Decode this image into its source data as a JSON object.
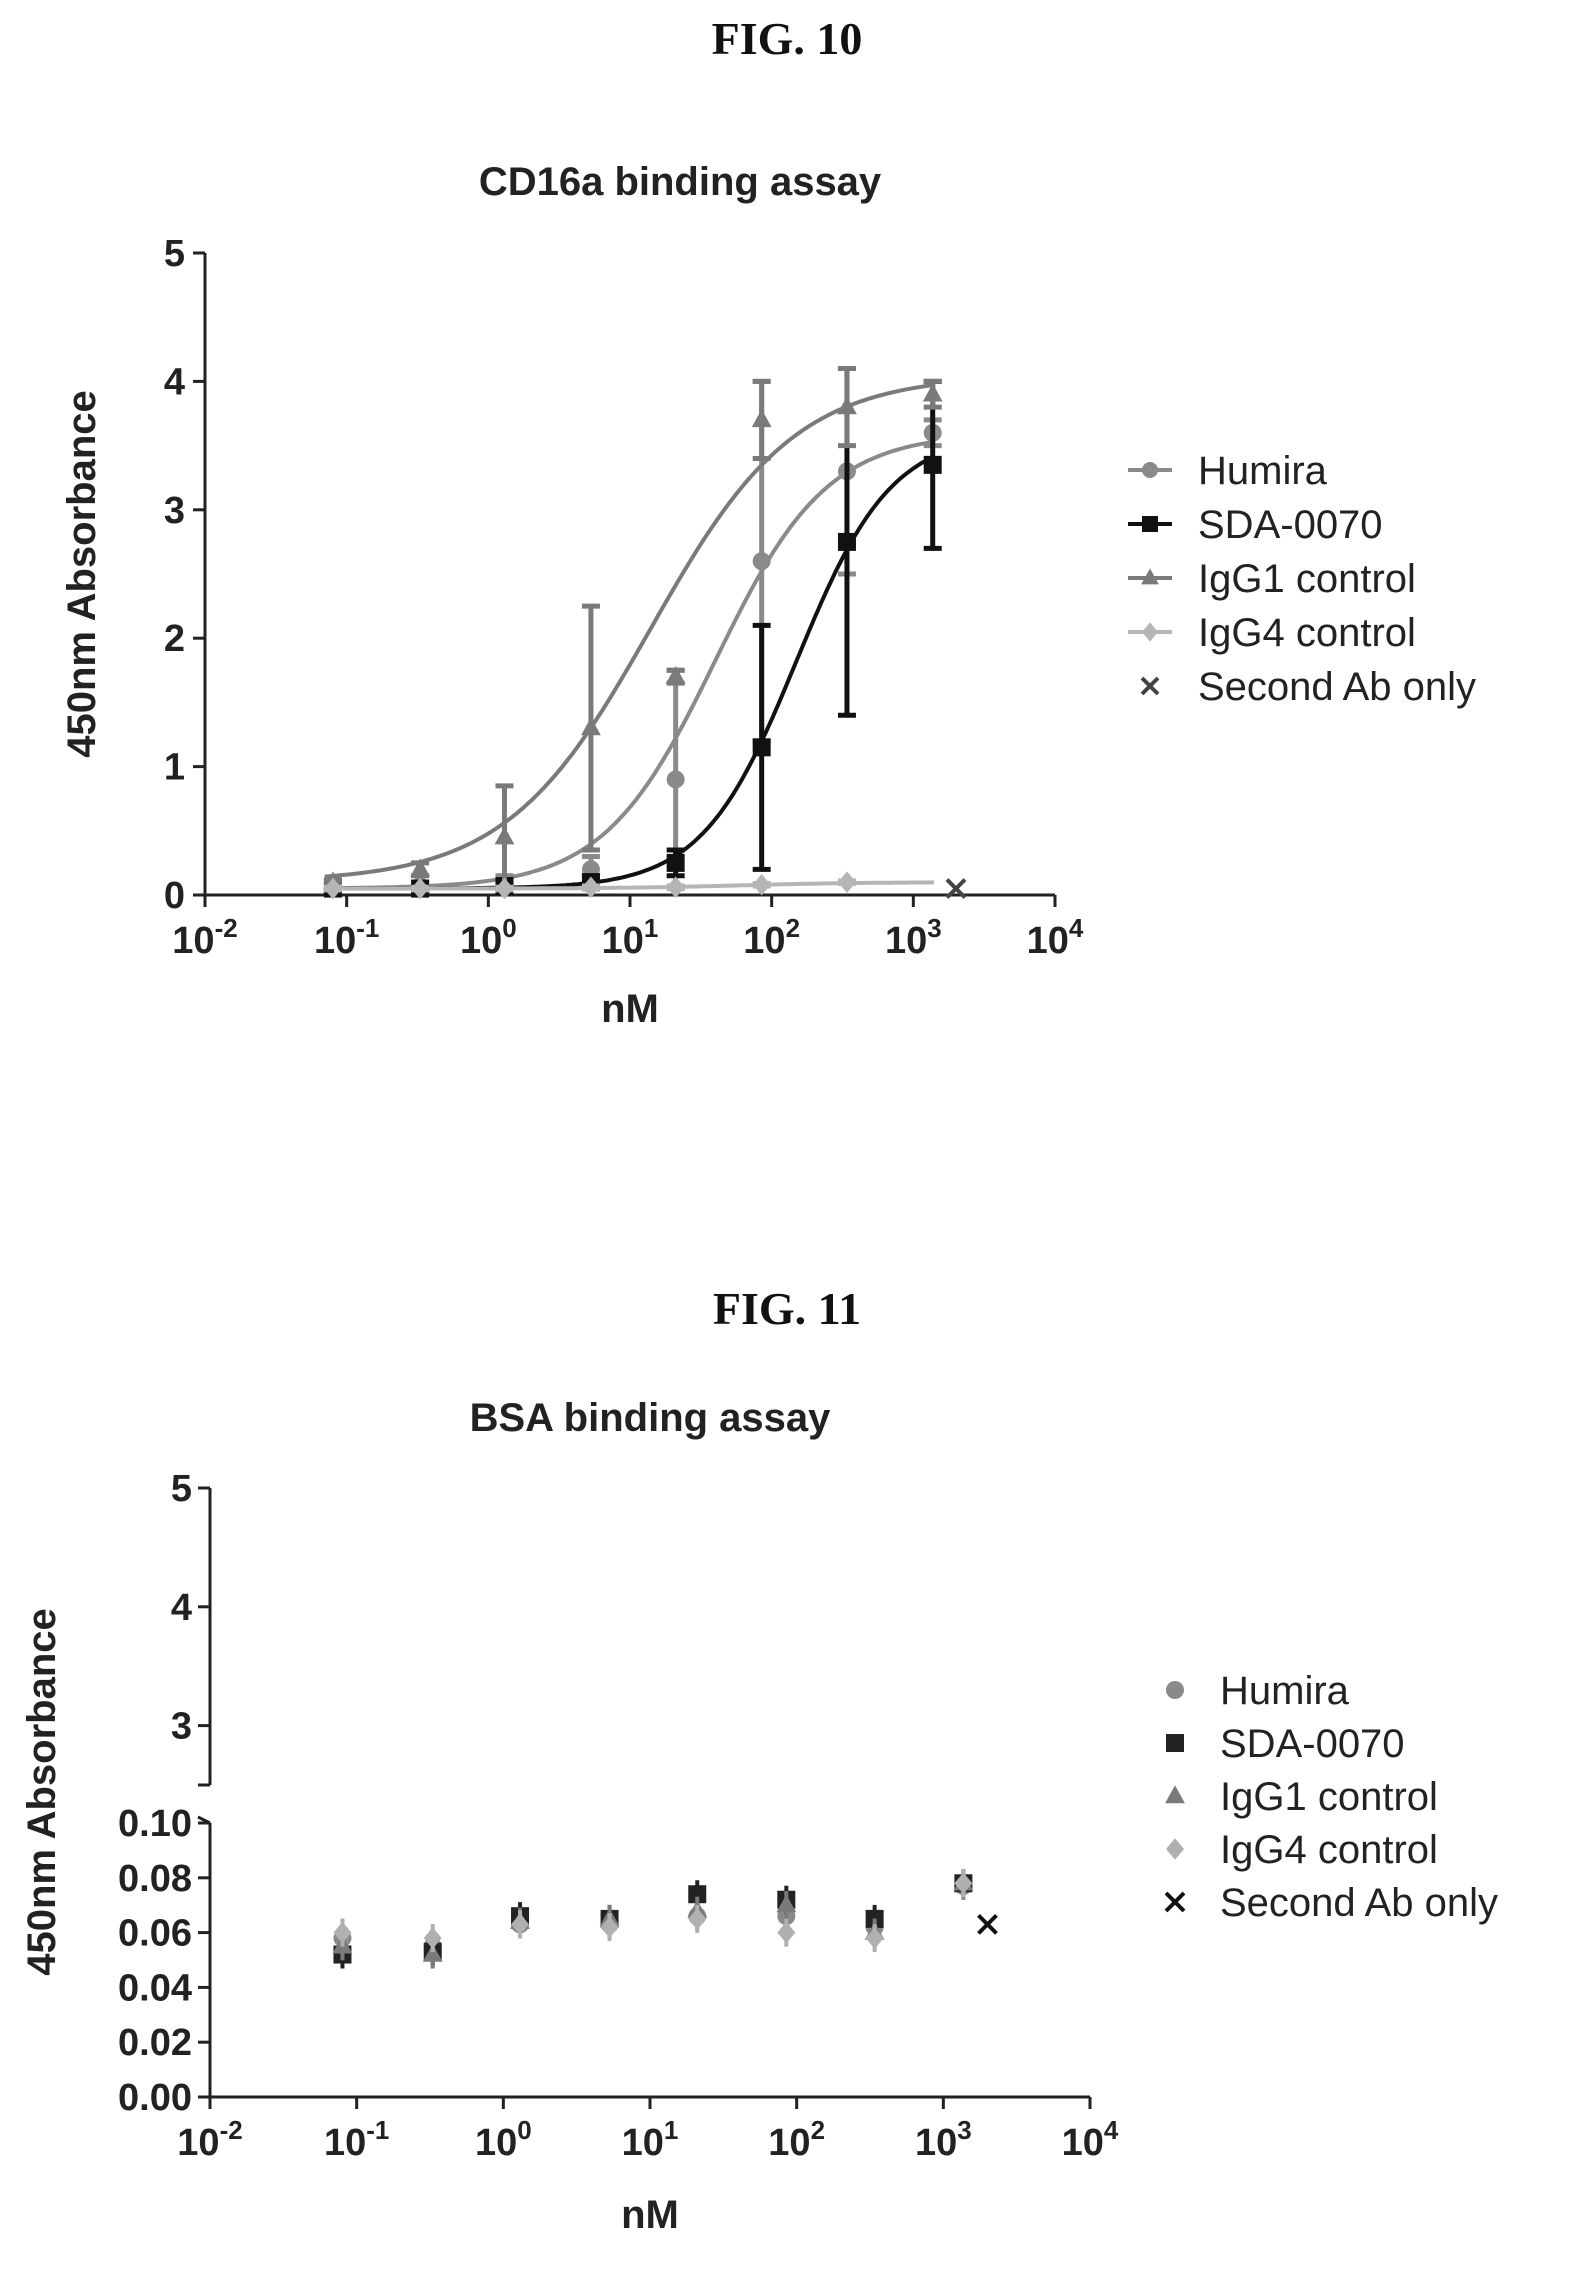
{
  "fig10": {
    "label": "FIG. 10"
  },
  "fig11": {
    "label": "FIG. 11"
  },
  "chart_data": [
    {
      "type": "line",
      "title": "CD16a binding assay",
      "xlabel": "nM",
      "ylabel": "450nm Absorbance",
      "x_scale": "log",
      "xlim": [
        0.01,
        10000
      ],
      "ylim": [
        0,
        5
      ],
      "x_ticks": [
        {
          "value": 0.01,
          "base": "10",
          "exp": "-2"
        },
        {
          "value": 0.1,
          "base": "10",
          "exp": "-1"
        },
        {
          "value": 1,
          "base": "10",
          "exp": "0"
        },
        {
          "value": 10,
          "base": "10",
          "exp": "1"
        },
        {
          "value": 100,
          "base": "10",
          "exp": "2"
        },
        {
          "value": 1000,
          "base": "10",
          "exp": "3"
        },
        {
          "value": 10000,
          "base": "10",
          "exp": "4"
        }
      ],
      "y_ticks": [
        "0",
        "1",
        "2",
        "3",
        "4",
        "5"
      ],
      "legend_position": "right",
      "series": [
        {
          "name": "Humira",
          "color": "#8a8a8a",
          "marker": "circle",
          "x": [
            0.08,
            0.33,
            1.3,
            5.3,
            21,
            85,
            340,
            1370
          ],
          "y": [
            0.05,
            0.07,
            0.1,
            0.2,
            0.9,
            2.6,
            3.3,
            3.6
          ],
          "err": [
            0.02,
            0.03,
            0.05,
            0.1,
            0.85,
            1.4,
            0.8,
            0.1
          ],
          "fit": {
            "bottom": 0.05,
            "top": 3.6,
            "ec50": 40,
            "hill": 1.1
          }
        },
        {
          "name": "SDA-0070",
          "color": "#111111",
          "marker": "square",
          "x": [
            0.08,
            0.33,
            1.3,
            5.3,
            21,
            85,
            340,
            1370
          ],
          "y": [
            0.05,
            0.05,
            0.07,
            0.1,
            0.25,
            1.15,
            2.75,
            3.35
          ],
          "err": [
            0.02,
            0.02,
            0.03,
            0.05,
            0.1,
            0.95,
            1.35,
            0.65
          ],
          "fit": {
            "bottom": 0.05,
            "top": 3.6,
            "ec50": 150,
            "hill": 1.3
          }
        },
        {
          "name": "IgG1 control",
          "color": "#7a7a7a",
          "marker": "triangle",
          "x": [
            0.08,
            0.33,
            1.3,
            5.3,
            21,
            85,
            340,
            1370
          ],
          "y": [
            0.1,
            0.2,
            0.45,
            1.3,
            1.7,
            3.7,
            3.8,
            3.9
          ],
          "err": [
            0.02,
            0.05,
            0.4,
            0.95,
            0.05,
            0.3,
            0.3,
            0.1
          ],
          "fit": {
            "bottom": 0.1,
            "top": 4.05,
            "ec50": 14,
            "hill": 0.85
          }
        },
        {
          "name": "IgG4 control",
          "color": "#b5b5b5",
          "marker": "diamond",
          "x": [
            0.08,
            0.33,
            1.3,
            5.3,
            21,
            85,
            340
          ],
          "y": [
            0.05,
            0.05,
            0.05,
            0.06,
            0.06,
            0.08,
            0.1
          ],
          "err": [
            0.01,
            0.01,
            0.01,
            0.01,
            0.01,
            0.01,
            0.01
          ],
          "fit": {
            "bottom": 0.05,
            "top": 0.1,
            "ec50": 60,
            "hill": 1.0
          }
        },
        {
          "name": "Second Ab only",
          "color": "#444444",
          "marker": "x",
          "x": [
            2000
          ],
          "y": [
            0.05
          ],
          "err": [
            0
          ]
        }
      ]
    },
    {
      "type": "scatter",
      "title": "BSA binding assay",
      "xlabel": "nM",
      "ylabel": "450nm Absorbance",
      "x_scale": "log",
      "xlim": [
        0.01,
        10000
      ],
      "y_axis_break": {
        "lower": [
          0,
          0.1
        ],
        "upper": [
          2.5,
          5
        ]
      },
      "x_ticks": [
        {
          "value": 0.01,
          "base": "10",
          "exp": "-2"
        },
        {
          "value": 0.1,
          "base": "10",
          "exp": "-1"
        },
        {
          "value": 1,
          "base": "10",
          "exp": "0"
        },
        {
          "value": 10,
          "base": "10",
          "exp": "1"
        },
        {
          "value": 100,
          "base": "10",
          "exp": "2"
        },
        {
          "value": 1000,
          "base": "10",
          "exp": "3"
        },
        {
          "value": 10000,
          "base": "10",
          "exp": "4"
        }
      ],
      "y_ticks_lower": [
        "0.00",
        "0.02",
        "0.04",
        "0.06",
        "0.08",
        "0.10"
      ],
      "y_ticks_upper": [
        "3",
        "4",
        "5"
      ],
      "legend_position": "right",
      "series": [
        {
          "name": "Humira",
          "color": "#8a8a8a",
          "marker": "circle",
          "x": [
            0.08,
            0.33,
            1.3,
            5.3,
            21,
            85,
            340,
            1370
          ],
          "y": [
            0.058,
            0.055,
            0.063,
            0.063,
            0.066,
            0.066,
            0.062,
            0.077
          ]
        },
        {
          "name": "SDA-0070",
          "color": "#222222",
          "marker": "square",
          "x": [
            0.08,
            0.33,
            1.3,
            5.3,
            21,
            85,
            340,
            1370
          ],
          "y": [
            0.052,
            0.053,
            0.066,
            0.065,
            0.074,
            0.072,
            0.065,
            0.078
          ]
        },
        {
          "name": "IgG1 control",
          "color": "#7a7a7a",
          "marker": "triangle",
          "x": [
            0.08,
            0.33,
            1.3,
            5.3,
            21,
            85,
            340,
            1370
          ],
          "y": [
            0.055,
            0.052,
            0.064,
            0.065,
            0.068,
            0.07,
            0.06,
            0.078
          ]
        },
        {
          "name": "IgG4 control",
          "color": "#b0b0b0",
          "marker": "diamond",
          "x": [
            0.08,
            0.33,
            1.3,
            5.3,
            21,
            85,
            340,
            1370
          ],
          "y": [
            0.06,
            0.058,
            0.063,
            0.062,
            0.065,
            0.06,
            0.058,
            0.078
          ]
        },
        {
          "name": "Second Ab only",
          "color": "#111111",
          "marker": "x",
          "x": [
            2000
          ],
          "y": [
            0.063
          ]
        }
      ]
    }
  ]
}
